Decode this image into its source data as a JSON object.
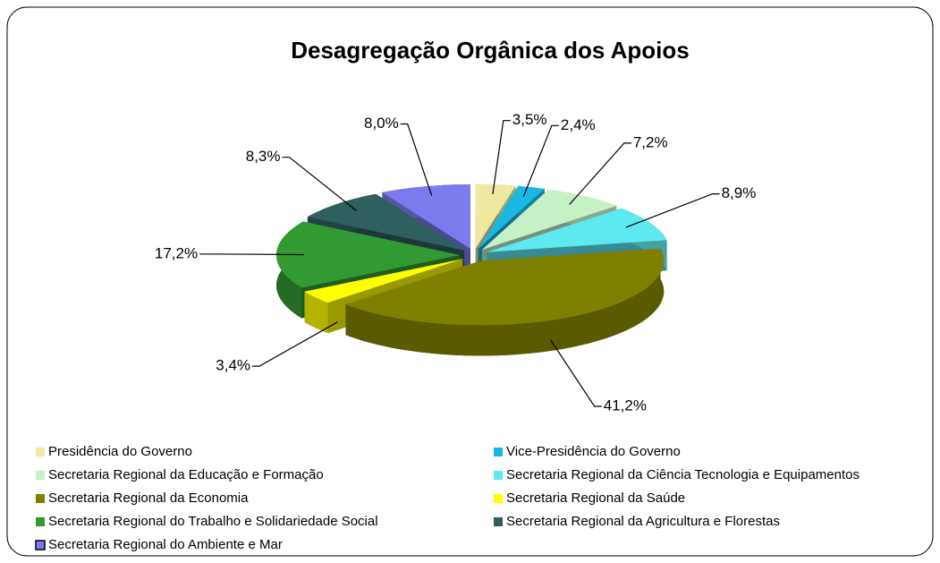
{
  "chart_data": {
    "type": "pie",
    "title": "Desagregação Orgânica dos Apoios",
    "categories": [
      "Presidência do Governo",
      "Vice-Presidência do Governo",
      "Secretaria Regional da Educação e Formação",
      "Secretaria Regional da Ciência Tecnologia e Equipamentos",
      "Secretaria Regional da Economia",
      "Secretaria Regional da Saúde",
      "Secretaria Regional do Trabalho e Solidariedade Social",
      "Secretaria Regional da Agricultura e Florestas",
      "Secretaria Regional do Ambiente e Mar"
    ],
    "values": [
      3.5,
      2.4,
      7.2,
      8.9,
      41.2,
      3.4,
      17.2,
      8.3,
      8.0
    ],
    "value_labels": [
      "3,5%",
      "2,4%",
      "7,2%",
      "8,9%",
      "41,2%",
      "3,4%",
      "17,2%",
      "8,3%",
      "8,0%"
    ],
    "colors": [
      "#eee8a0",
      "#1ab8e0",
      "#c6f0c6",
      "#5ee8f0",
      "#808000",
      "#ffff00",
      "#339933",
      "#2f5f5f",
      "#7b7bee"
    ]
  }
}
